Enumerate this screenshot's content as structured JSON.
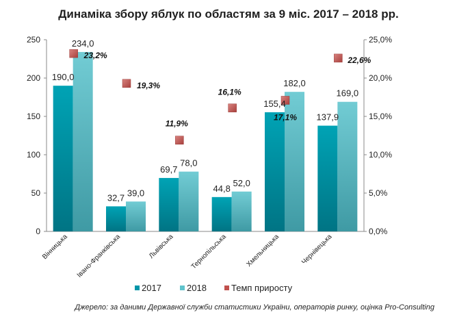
{
  "chart_data": {
    "type": "bar",
    "title": "Динаміка збору яблук по областям за 9 міс. 2017 – 2018 рр.",
    "categories": [
      "Вінницька",
      "Івано-Франківська",
      "Львівська",
      "Тернопільська",
      "Хмельницька",
      "Чернівецька"
    ],
    "series": [
      {
        "name": "2017",
        "values": [
          190.0,
          32.7,
          69.7,
          44.8,
          155.4,
          137.9
        ],
        "labels": [
          "190,0",
          "32,7",
          "69,7",
          "44,8",
          "155,4",
          "137,9"
        ],
        "color": "#0095a8"
      },
      {
        "name": "2018",
        "values": [
          234.0,
          39.0,
          78.0,
          52.0,
          182.0,
          169.0
        ],
        "labels": [
          "234,0",
          "39,0",
          "78,0",
          "52,0",
          "182,0",
          "169,0"
        ],
        "color": "#5fc3cc"
      }
    ],
    "secondary_series": {
      "name": "Темп приросту",
      "type": "scatter",
      "values": [
        23.2,
        19.3,
        11.9,
        16.1,
        17.1,
        22.6
      ],
      "labels": [
        "23,2%",
        "19,3%",
        "11,9%",
        "16,1%",
        "17,1%",
        "22,6%"
      ],
      "color": "#c0504d"
    },
    "y_left": {
      "min": 0,
      "max": 250,
      "step": 50,
      "ticks": [
        "0",
        "50",
        "100",
        "150",
        "200",
        "250"
      ]
    },
    "y_right": {
      "min": 0,
      "max": 25,
      "step": 5,
      "ticks": [
        "0,0%",
        "5,0%",
        "10,0%",
        "15,0%",
        "20,0%",
        "25,0%"
      ]
    },
    "legend": {
      "position": "bottom",
      "items": [
        "2017",
        "2018",
        "Темп приросту"
      ]
    },
    "grid": false
  },
  "source": "Джерело: за даними Державної служби статистики України, операторів ринку, оцінка Pro-Consulting"
}
